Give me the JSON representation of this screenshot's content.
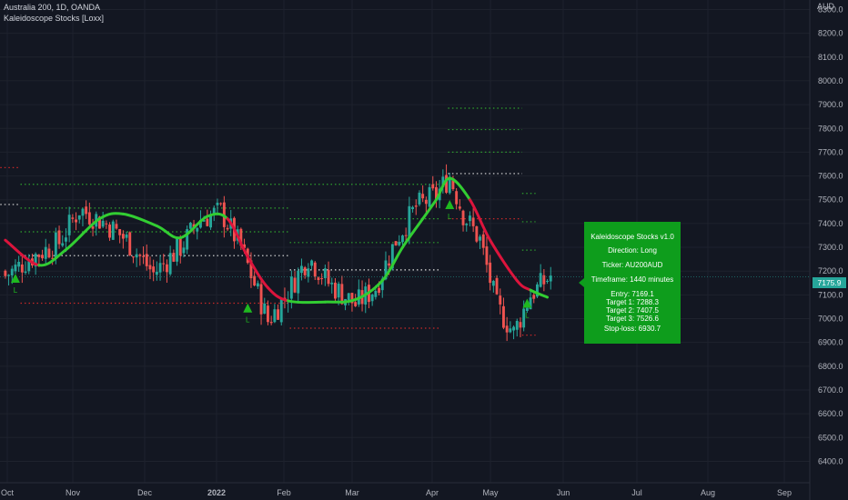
{
  "header": {
    "symbol_line": "Australia 200, 1D, OANDA",
    "indicator_line": "Kaleidoscope Stocks [Loxx]"
  },
  "axis": {
    "currency": "AUD",
    "last_price_tag": "7175.9"
  },
  "colors": {
    "background": "#131722",
    "up_candle": "#26a69a",
    "down_candle": "#ef5350",
    "trend_up": "#32cd32",
    "trend_down": "#dc143c",
    "panel": "#0e9d1c",
    "signal": "#1fb81f"
  },
  "info_panel": {
    "title": "Kaleidoscope Stocks v1.0",
    "direction": "Direction: Long",
    "ticker": "Ticker: AU200AUD",
    "timeframe": "Timeframe: 1440 minutes",
    "entry": "Entry: 7169.1",
    "target1": "Target 1: 7288.3",
    "target2": "Target 2: 7407.5",
    "target3": "Target 3: 7526.6",
    "stoploss": "Stop-loss: 6930.7"
  },
  "chart_data": {
    "type": "candlestick",
    "y_axis": {
      "ticks": [
        6400,
        6500,
        6600,
        6700,
        6800,
        6900,
        7000,
        7100,
        7200,
        7300,
        7400,
        7500,
        7600,
        7700,
        7800,
        7900,
        8000,
        8100,
        8200,
        8300
      ],
      "range": [
        6310,
        8340
      ]
    },
    "x_ticks": [
      "Oct",
      "Nov",
      "Dec",
      "2022",
      "Feb",
      "Mar",
      "Apr",
      "May",
      "Jun",
      "Jul",
      "Aug",
      "Sep"
    ],
    "last_price": 7175.9,
    "close_anchors": [
      [
        0,
        7180
      ],
      [
        8,
        7260
      ],
      [
        16,
        7320
      ],
      [
        22,
        7460
      ],
      [
        30,
        7400
      ],
      [
        36,
        7330
      ],
      [
        44,
        7190
      ],
      [
        52,
        7300
      ],
      [
        58,
        7420
      ],
      [
        64,
        7450
      ],
      [
        70,
        7300
      ],
      [
        78,
        6990
      ],
      [
        83,
        7090
      ],
      [
        90,
        7260
      ],
      [
        96,
        7150
      ],
      [
        104,
        7060
      ],
      [
        110,
        7130
      ],
      [
        116,
        7330
      ],
      [
        122,
        7470
      ],
      [
        128,
        7520
      ],
      [
        132,
        7600
      ],
      [
        136,
        7440
      ],
      [
        141,
        7330
      ],
      [
        146,
        7050
      ],
      [
        151,
        6940
      ],
      [
        156,
        7100
      ],
      [
        162,
        7180
      ]
    ],
    "smooth_line": {
      "points": [
        [
          0,
          7330
        ],
        [
          10,
          7225
        ],
        [
          18,
          7290
        ],
        [
          28,
          7420
        ],
        [
          35,
          7440
        ],
        [
          45,
          7390
        ],
        [
          52,
          7340
        ],
        [
          60,
          7430
        ],
        [
          66,
          7420
        ],
        [
          72,
          7260
        ],
        [
          78,
          7130
        ],
        [
          84,
          7075
        ],
        [
          95,
          7070
        ],
        [
          104,
          7080
        ],
        [
          112,
          7160
        ],
        [
          118,
          7300
        ],
        [
          124,
          7420
        ],
        [
          128,
          7500
        ],
        [
          132,
          7590
        ],
        [
          138,
          7500
        ],
        [
          144,
          7330
        ],
        [
          152,
          7160
        ],
        [
          156,
          7120
        ],
        [
          161,
          7090
        ]
      ],
      "trend": [
        "down",
        "up",
        "up",
        "up",
        "up",
        "up",
        "up",
        "up",
        "down",
        "down",
        "down",
        "up",
        "up",
        "up",
        "up",
        "up",
        "up",
        "up",
        "up",
        "down",
        "down",
        "down",
        "up"
      ]
    },
    "signals": [
      {
        "bar": 3,
        "price": 7170,
        "label": "L"
      },
      {
        "bar": 72,
        "price": 7045,
        "label": "L"
      },
      {
        "bar": 132,
        "price": 7480,
        "label": "L"
      },
      {
        "bar": 155,
        "price": 7065,
        "label": "L"
      }
    ],
    "level_segments": [
      {
        "x0": -1,
        "x1": 5,
        "price": 7635,
        "color": "#c62828"
      },
      {
        "x0": -1,
        "x1": 5,
        "price": 7480,
        "color": "#e0e0e0"
      },
      {
        "x0": 5,
        "x1": 85,
        "price": 7565,
        "color": "#2e9e2e"
      },
      {
        "x0": 5,
        "x1": 85,
        "price": 7465,
        "color": "#2e9e2e"
      },
      {
        "x0": 5,
        "x1": 85,
        "price": 7365,
        "color": "#2e9e2e"
      },
      {
        "x0": 5,
        "x1": 85,
        "price": 7265,
        "color": "#e0e0e0"
      },
      {
        "x0": 5,
        "x1": 85,
        "price": 7065,
        "color": "#c62828"
      },
      {
        "x0": 85,
        "x1": 130,
        "price": 7565,
        "color": "#2e9e2e"
      },
      {
        "x0": 85,
        "x1": 130,
        "price": 7420,
        "color": "#2e9e2e"
      },
      {
        "x0": 85,
        "x1": 130,
        "price": 7320,
        "color": "#2e9e2e"
      },
      {
        "x0": 85,
        "x1": 130,
        "price": 7205,
        "color": "#e0e0e0"
      },
      {
        "x0": 85,
        "x1": 130,
        "price": 6960,
        "color": "#c62828"
      },
      {
        "x0": 132,
        "x1": 154,
        "price": 7885,
        "color": "#2e9e2e"
      },
      {
        "x0": 132,
        "x1": 154,
        "price": 7795,
        "color": "#2e9e2e"
      },
      {
        "x0": 132,
        "x1": 154,
        "price": 7700,
        "color": "#2e9e2e"
      },
      {
        "x0": 132,
        "x1": 154,
        "price": 7610,
        "color": "#e0e0e0"
      },
      {
        "x0": 132,
        "x1": 154,
        "price": 7420,
        "color": "#c62828"
      },
      {
        "x0": 154,
        "x1": 158,
        "price": 7526.6,
        "color": "#2e9e2e"
      },
      {
        "x0": 154,
        "x1": 158,
        "price": 7407.5,
        "color": "#2e9e2e"
      },
      {
        "x0": 154,
        "x1": 158,
        "price": 7288.3,
        "color": "#2e9e2e"
      },
      {
        "x0": 154,
        "x1": 158,
        "price": 6930.7,
        "color": "#c62828"
      }
    ]
  }
}
